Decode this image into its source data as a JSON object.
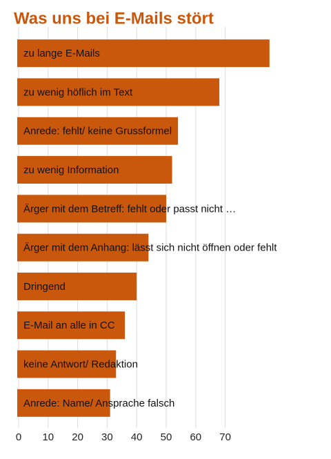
{
  "chart_data": {
    "type": "hbar",
    "title": "Was uns bei E-Mails stört",
    "categories": [
      "zu lange E-Mails",
      "zu wenig höflich im Text",
      "Anrede: fehlt/ keine Grussformel",
      "zu wenig Information",
      "Ärger mit dem Betreff: fehlt oder passt nicht …",
      "Ärger mit dem Anhang: lässt sich nicht öffnen oder fehlt",
      "Dringend",
      "E-Mail an alle in CC",
      "keine Antwort/ Redaktion",
      "Anrede: Name/ Ansprache falsch"
    ],
    "values": [
      85,
      68,
      54,
      52,
      50,
      44,
      40,
      36,
      33,
      31
    ],
    "color": "#c9580c",
    "xlim": [
      0,
      100
    ],
    "xticks": [
      0,
      10,
      20,
      30,
      40,
      50,
      60,
      70
    ],
    "grid": true
  }
}
